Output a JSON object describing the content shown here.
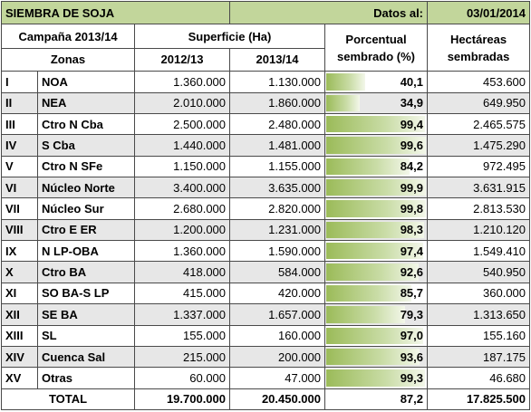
{
  "title": "SIEMBRA DE SOJA",
  "date_label": "Datos al:",
  "date_value": "03/01/2014",
  "headers": {
    "campaign": "Campaña 2013/14",
    "surface": "Superficie (Ha)",
    "pct_line1": "Porcentual",
    "pct_line2": "sembrado (%)",
    "ha_line1": "Hectáreas",
    "ha_line2": "sembradas",
    "zones": "Zonas",
    "year1": "2012/13",
    "year2": "2013/14"
  },
  "rows": [
    {
      "num": "I",
      "zone": "NOA",
      "s2012": "1.360.000",
      "s2013": "1.130.000",
      "pct": "40,1",
      "pct_value": 40.1,
      "ha": "453.600"
    },
    {
      "num": "II",
      "zone": "NEA",
      "s2012": "2.010.000",
      "s2013": "1.860.000",
      "pct": "34,9",
      "pct_value": 34.9,
      "ha": "649.950"
    },
    {
      "num": "III",
      "zone": "Ctro N Cba",
      "s2012": "2.500.000",
      "s2013": "2.480.000",
      "pct": "99,4",
      "pct_value": 99.4,
      "ha": "2.465.575"
    },
    {
      "num": "IV",
      "zone": "S Cba",
      "s2012": "1.440.000",
      "s2013": "1.481.000",
      "pct": "99,6",
      "pct_value": 99.6,
      "ha": "1.475.290"
    },
    {
      "num": "V",
      "zone": "Ctro N SFe",
      "s2012": "1.150.000",
      "s2013": "1.155.000",
      "pct": "84,2",
      "pct_value": 84.2,
      "ha": "972.495"
    },
    {
      "num": "VI",
      "zone": "Núcleo Norte",
      "s2012": "3.400.000",
      "s2013": "3.635.000",
      "pct": "99,9",
      "pct_value": 99.9,
      "ha": "3.631.915"
    },
    {
      "num": "VII",
      "zone": "Núcleo Sur",
      "s2012": "2.680.000",
      "s2013": "2.820.000",
      "pct": "99,8",
      "pct_value": 99.8,
      "ha": "2.813.530"
    },
    {
      "num": "VIII",
      "zone": "Ctro E ER",
      "s2012": "1.200.000",
      "s2013": "1.231.000",
      "pct": "98,3",
      "pct_value": 98.3,
      "ha": "1.210.120"
    },
    {
      "num": "IX",
      "zone": "N LP-OBA",
      "s2012": "1.360.000",
      "s2013": "1.590.000",
      "pct": "97,4",
      "pct_value": 97.4,
      "ha": "1.549.410"
    },
    {
      "num": "X",
      "zone": "Ctro BA",
      "s2012": "418.000",
      "s2013": "584.000",
      "pct": "92,6",
      "pct_value": 92.6,
      "ha": "540.950"
    },
    {
      "num": "XI",
      "zone": "SO BA-S LP",
      "s2012": "415.000",
      "s2013": "420.000",
      "pct": "85,7",
      "pct_value": 85.7,
      "ha": "360.000"
    },
    {
      "num": "XII",
      "zone": "SE BA",
      "s2012": "1.337.000",
      "s2013": "1.657.000",
      "pct": "79,3",
      "pct_value": 79.3,
      "ha": "1.313.650"
    },
    {
      "num": "XIII",
      "zone": "SL",
      "s2012": "155.000",
      "s2013": "160.000",
      "pct": "97,0",
      "pct_value": 97.0,
      "ha": "155.160"
    },
    {
      "num": "XIV",
      "zone": "Cuenca Sal",
      "s2012": "215.000",
      "s2013": "200.000",
      "pct": "93,6",
      "pct_value": 93.6,
      "ha": "187.175"
    },
    {
      "num": "XV",
      "zone": "Otras",
      "s2012": "60.000",
      "s2013": "47.000",
      "pct": "99,3",
      "pct_value": 99.3,
      "ha": "46.680"
    }
  ],
  "total": {
    "label": "TOTAL",
    "s2012": "19.700.000",
    "s2013": "20.450.000",
    "pct": "87,2",
    "ha": "17.825.500"
  },
  "colors": {
    "title_bg": "#c2d69b",
    "bar": "#9bbb59",
    "alt_row": "#e7e7e7"
  }
}
